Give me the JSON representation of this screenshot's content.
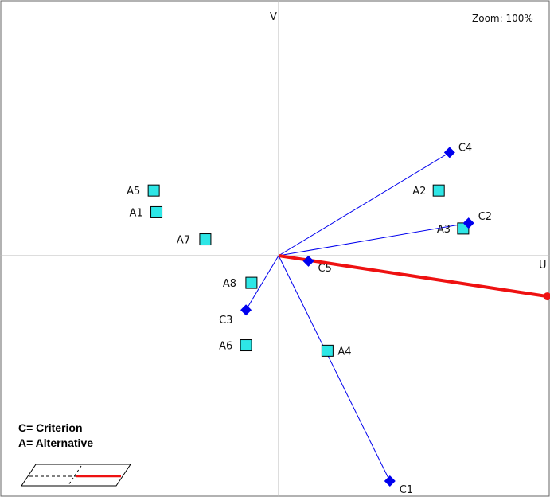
{
  "zoom_label": "Zoom: 100%",
  "axes": {
    "u_label": "U",
    "v_label": "V"
  },
  "legend": {
    "line1": "C= Criterion",
    "line2": "A= Alternative"
  },
  "colors": {
    "criterion": "#0000ee",
    "alternative_fill": "#2ee6e6",
    "decision_axis": "#ee1111",
    "axes": "#bbbbbb"
  },
  "chart_data": {
    "type": "scatter",
    "xlabel": "U",
    "ylabel": "V",
    "xlim": [
      -1,
      1
    ],
    "ylim": [
      -0.91,
      0.9
    ],
    "grid": false,
    "criteria": [
      {
        "label": "C1",
        "x": 0.41,
        "y": -0.83
      },
      {
        "label": "C2",
        "x": 0.7,
        "y": 0.12
      },
      {
        "label": "C3",
        "x": -0.12,
        "y": -0.2
      },
      {
        "label": "C4",
        "x": 0.63,
        "y": 0.38
      },
      {
        "label": "C5",
        "x": 0.11,
        "y": -0.02
      }
    ],
    "alternatives": [
      {
        "label": "A1",
        "x": -0.45,
        "y": 0.16
      },
      {
        "label": "A2",
        "x": 0.59,
        "y": 0.24
      },
      {
        "label": "A3",
        "x": 0.68,
        "y": 0.1
      },
      {
        "label": "A4",
        "x": 0.18,
        "y": -0.35
      },
      {
        "label": "A5",
        "x": -0.46,
        "y": 0.24
      },
      {
        "label": "A6",
        "x": -0.12,
        "y": -0.33
      },
      {
        "label": "A7",
        "x": -0.27,
        "y": 0.06
      },
      {
        "label": "A8",
        "x": -0.1,
        "y": -0.1
      }
    ],
    "decision_axis": {
      "x": 0.99,
      "y": -0.15
    }
  }
}
